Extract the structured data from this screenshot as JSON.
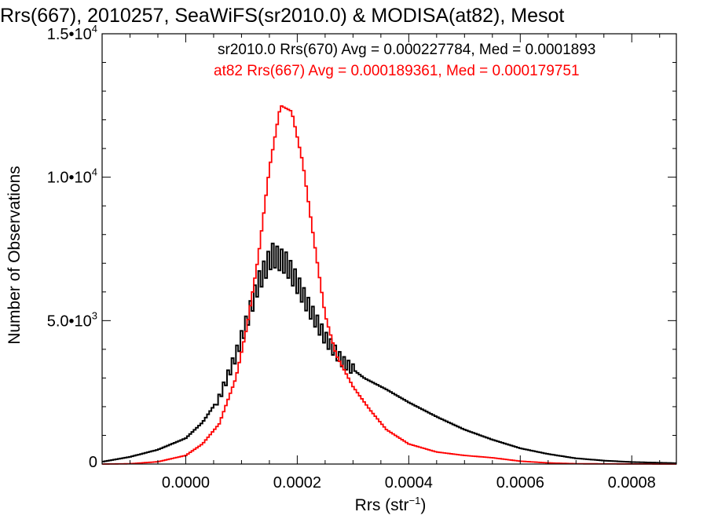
{
  "chart_data": {
    "type": "line",
    "title": "Rrs(667), 2010257, SeaWiFS(sr2010.0) & MODISA(at82), Mesot",
    "xlabel": "Rrs (str",
    "xlabel_sup": "−1",
    "xlabel_end": ")",
    "ylabel": "Number of Observations",
    "xlim": [
      -0.00015,
      0.00088
    ],
    "ylim": [
      0,
      15000
    ],
    "x_ticks": [
      {
        "value": 0.0,
        "label": "0.0000"
      },
      {
        "value": 0.0002,
        "label": "0.0002"
      },
      {
        "value": 0.0004,
        "label": "0.0004"
      },
      {
        "value": 0.0006,
        "label": "0.0006"
      },
      {
        "value": 0.0008,
        "label": "0.0008"
      }
    ],
    "y_ticks": [
      {
        "value": 0,
        "label": "0",
        "exp": ""
      },
      {
        "value": 5000,
        "label": "5.0•10",
        "exp": "3"
      },
      {
        "value": 10000,
        "label": "1.0•10",
        "exp": "4"
      },
      {
        "value": 15000,
        "label": "1.5•10",
        "exp": "4"
      }
    ],
    "legend_position": "top-right",
    "grid": false,
    "series": [
      {
        "name": "sr2010.0 Rrs(670) Avg = 0.000227784, Med = 0.0001893",
        "color": "#000000",
        "peak_x": 0.000155,
        "peak_y": 7300,
        "points": [
          [
            -0.00015,
            80
          ],
          [
            -0.0001,
            250
          ],
          [
            -5e-05,
            500
          ],
          [
            0.0,
            900
          ],
          [
            3e-05,
            1450
          ],
          [
            6e-05,
            2300
          ],
          [
            9e-05,
            3800
          ],
          [
            0.00011,
            5000
          ],
          [
            0.00013,
            6300
          ],
          [
            0.000155,
            7300
          ],
          [
            0.00018,
            7000
          ],
          [
            0.0002,
            6300
          ],
          [
            0.00022,
            5500
          ],
          [
            0.00025,
            4400
          ],
          [
            0.00028,
            3600
          ],
          [
            0.00032,
            3000
          ],
          [
            0.00036,
            2600
          ],
          [
            0.0004,
            2150
          ],
          [
            0.00045,
            1650
          ],
          [
            0.0005,
            1200
          ],
          [
            0.00055,
            850
          ],
          [
            0.0006,
            550
          ],
          [
            0.00065,
            350
          ],
          [
            0.0007,
            200
          ],
          [
            0.00075,
            120
          ],
          [
            0.0008,
            70
          ],
          [
            0.00088,
            30
          ]
        ]
      },
      {
        "name": "at82 Rrs(667) Avg = 0.000189361, Med = 0.000179751",
        "color": "#ff0000",
        "peak_x": 0.00017,
        "peak_y": 12500,
        "points": [
          [
            -0.00015,
            0
          ],
          [
            -0.0001,
            10
          ],
          [
            -5e-05,
            80
          ],
          [
            0.0,
            300
          ],
          [
            3e-05,
            700
          ],
          [
            6e-05,
            1400
          ],
          [
            9e-05,
            3000
          ],
          [
            0.00011,
            4800
          ],
          [
            0.00013,
            7200
          ],
          [
            0.00015,
            10300
          ],
          [
            0.00017,
            12500
          ],
          [
            0.00019,
            12300
          ],
          [
            0.00021,
            10500
          ],
          [
            0.00023,
            7800
          ],
          [
            0.00025,
            5200
          ],
          [
            0.00027,
            3800
          ],
          [
            0.0003,
            2700
          ],
          [
            0.00033,
            1900
          ],
          [
            0.00036,
            1200
          ],
          [
            0.0004,
            700
          ],
          [
            0.00045,
            420
          ],
          [
            0.0005,
            300
          ],
          [
            0.00055,
            220
          ],
          [
            0.0006,
            100
          ],
          [
            0.00065,
            40
          ],
          [
            0.0007,
            10
          ],
          [
            0.00088,
            0
          ]
        ]
      }
    ]
  }
}
